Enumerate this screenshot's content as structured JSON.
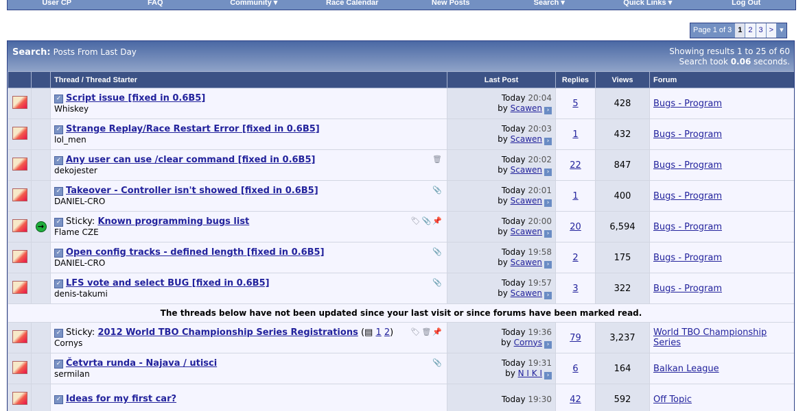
{
  "nav": [
    "User CP",
    "FAQ",
    "Community ▾",
    "Race Calendar",
    "New Posts",
    "Search ▾",
    "Quick Links ▾",
    "Log Out"
  ],
  "pager": {
    "label": "Page 1 of 3",
    "pages": [
      "1",
      "2",
      "3"
    ],
    "next": ">",
    "menu": "▾"
  },
  "header": {
    "title": "Search:",
    "subtitle": "Posts From Last Day",
    "results": "Showing results 1 to 25 of 60",
    "took_prefix": "Search took",
    "took_value": "0.06",
    "took_suffix": "seconds."
  },
  "columns": {
    "thread": "Thread / Thread Starter",
    "last_post": "Last Post",
    "replies": "Replies",
    "views": "Views",
    "forum": "Forum"
  },
  "separator": "The threads below have not been updated since your last visit or since forums have been marked read.",
  "rows": [
    {
      "prefix": "",
      "title": "Script issue [fixed in 0.6B5]",
      "starter": "Whiskey",
      "icons": "",
      "day": "Today",
      "time": "20:04",
      "by": "by",
      "user": "Scawen",
      "replies": "5",
      "views": "428",
      "forum": "Bugs - Program"
    },
    {
      "prefix": "",
      "title": "Strange Replay/Race Restart Error [fixed in 0.6B5]",
      "starter": "lol_men",
      "icons": "",
      "day": "Today",
      "time": "20:03",
      "by": "by",
      "user": "Scawen",
      "replies": "1",
      "views": "432",
      "forum": "Bugs - Program"
    },
    {
      "prefix": "",
      "title": "Any user can use /clear command [fixed in 0.6B5]",
      "starter": "dekojester",
      "icons": "🗑",
      "day": "Today",
      "time": "20:02",
      "by": "by",
      "user": "Scawen",
      "replies": "22",
      "views": "847",
      "forum": "Bugs - Program"
    },
    {
      "prefix": "",
      "title": "Takeover - Controller isn't showed [fixed in 0.6B5]",
      "starter": "DANIEL-CRO",
      "icons": "📎",
      "day": "Today",
      "time": "20:01",
      "by": "by",
      "user": "Scawen",
      "replies": "1",
      "views": "400",
      "forum": "Bugs - Program"
    },
    {
      "prefix": "Sticky:",
      "title": "Known programming bugs list",
      "starter": "Flame CZE",
      "icons": "🏷📎📌",
      "day": "Today",
      "time": "20:00",
      "by": "by",
      "user": "Scawen",
      "replies": "20",
      "views": "6,594",
      "forum": "Bugs - Program",
      "goto": "→"
    },
    {
      "prefix": "",
      "title": "Open config tracks - defined length [fixed in 0.6B5]",
      "starter": "DANIEL-CRO",
      "icons": "📎",
      "day": "Today",
      "time": "19:58",
      "by": "by",
      "user": "Scawen",
      "replies": "2",
      "views": "175",
      "forum": "Bugs - Program"
    },
    {
      "prefix": "",
      "title": "LFS vote and select BUG [fixed in 0.6B5]",
      "starter": "denis-takumi",
      "icons": "📎",
      "day": "Today",
      "time": "19:57",
      "by": "by",
      "user": "Scawen",
      "replies": "3",
      "views": "322",
      "forum": "Bugs - Program"
    }
  ],
  "rows2": [
    {
      "prefix": "Sticky:",
      "title": "2012 World TBO Championship Series Registrations",
      "pages": [
        "1",
        "2"
      ],
      "starter": "Cornys",
      "icons": "🏷🗑📌",
      "day": "Today",
      "time": "19:36",
      "by": "by",
      "user": "Cornys",
      "replies": "79",
      "views": "3,237",
      "forum": "World TBO Championship Series"
    },
    {
      "prefix": "",
      "title": "Četvrta runda - Najava / utisci",
      "starter": "sermilan",
      "icons": "📎",
      "day": "Today",
      "time": "19:31",
      "by": "by",
      "user": "N I K I",
      "replies": "6",
      "views": "164",
      "forum": "Balkan League"
    },
    {
      "prefix": "",
      "title": "Ideas for my first car?",
      "starter": "",
      "icons": "",
      "day": "Today",
      "time": "19:30",
      "by": "",
      "user": "",
      "replies": "42",
      "views": "592",
      "forum": "Off Topic"
    }
  ]
}
